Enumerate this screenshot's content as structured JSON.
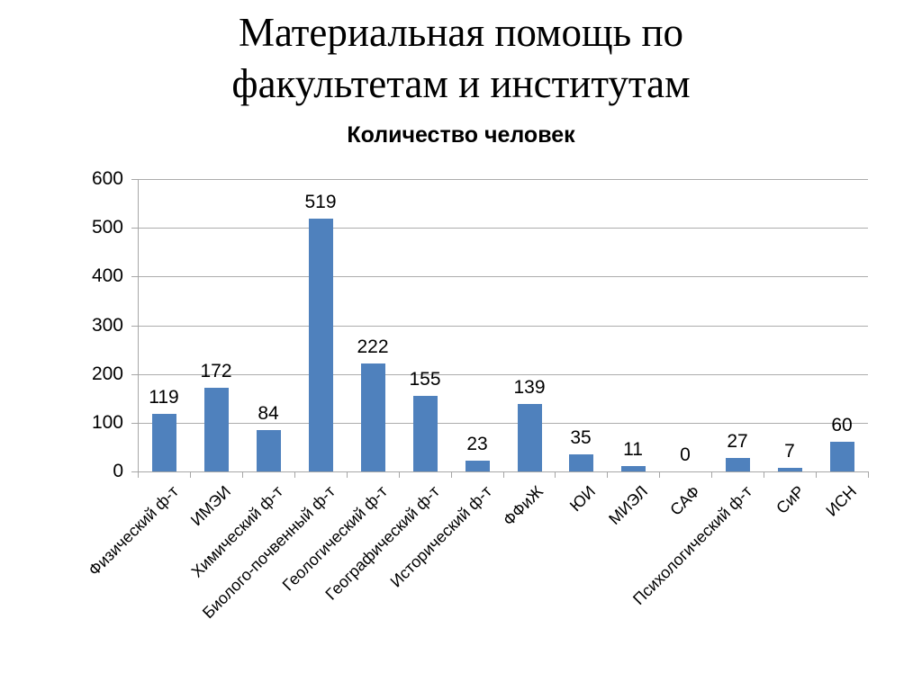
{
  "slide": {
    "title_line1": "Материальная помощь по",
    "title_line2": "факультетам и институтам"
  },
  "chart_data": {
    "type": "bar",
    "title": "Количество человек",
    "categories": [
      "Физический ф-т",
      "ИМЭИ",
      "Химический ф-т",
      "Биолого-почвенный ф-т",
      "Геологический ф-т",
      "Географический ф-т",
      "Исторический ф-т",
      "ФФиЖ",
      "ЮИ",
      "МИЭЛ",
      "САФ",
      "Психологический ф-т",
      "СиР",
      "ИСН"
    ],
    "values": [
      119,
      172,
      84,
      519,
      222,
      155,
      23,
      139,
      35,
      11,
      0,
      27,
      7,
      60
    ],
    "xlabel": "",
    "ylabel": "",
    "ylim": [
      0,
      600
    ],
    "yticks": [
      0,
      100,
      200,
      300,
      400,
      500,
      600
    ],
    "grid": true,
    "legend_position": "none",
    "data_labels": true,
    "colors": {
      "bar": "#4F81BD",
      "gridline": "#ACACAC",
      "axis": "#A6A6A6",
      "text": "#000000",
      "background": "#FFFFFF"
    }
  }
}
